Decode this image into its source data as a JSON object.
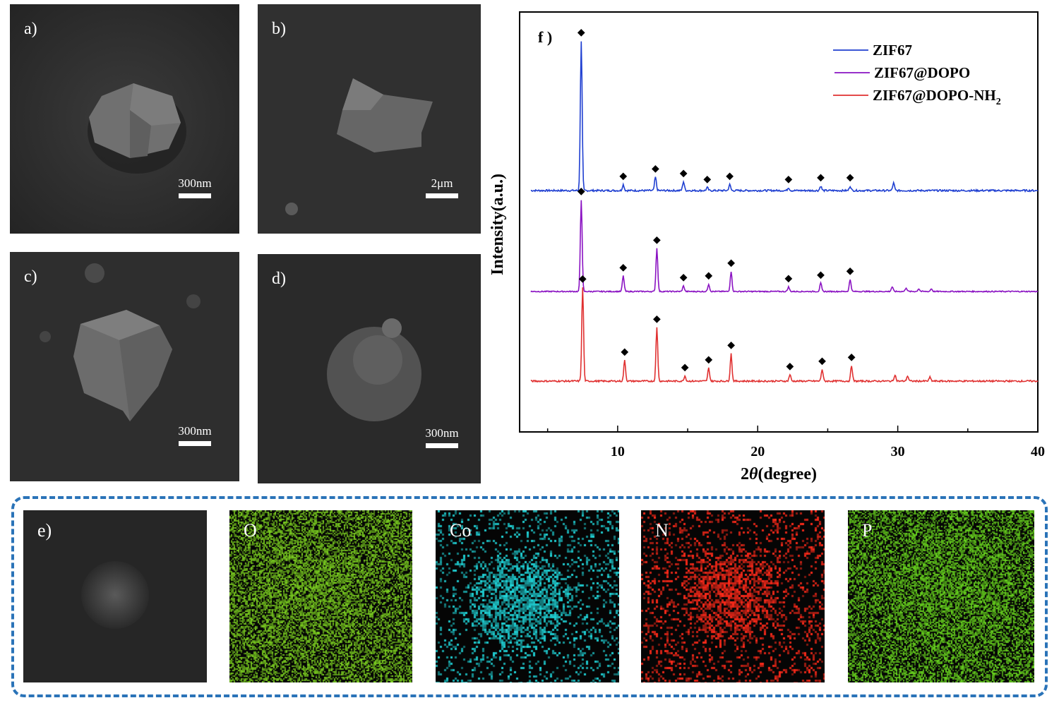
{
  "sem_panels": [
    {
      "label": "a)",
      "scale": "300nm"
    },
    {
      "label": "b)",
      "scale": "2μm"
    },
    {
      "label": "c)",
      "scale": "300nm"
    },
    {
      "label": "d)",
      "scale": "300nm"
    }
  ],
  "eds": {
    "label": "e)",
    "maps": [
      {
        "element": "O",
        "color": "#7ed321"
      },
      {
        "element": "Co",
        "color": "#20d4d8"
      },
      {
        "element": "N",
        "color": "#ff2a1a"
      },
      {
        "element": "P",
        "color": "#6ad81f"
      }
    ]
  },
  "chart_data": {
    "type": "line",
    "panel_label": "f )",
    "xlabel_prefix": "2",
    "xlabel_symbol": "θ",
    "xlabel_suffix": "(degree)",
    "ylabel": "Intensity(a.u.)",
    "xlim": [
      3,
      40
    ],
    "xticks": [
      10,
      20,
      30,
      40
    ],
    "marker": "◆",
    "legend_position": "top-right",
    "series": [
      {
        "name": "ZIF67",
        "subscript": "",
        "color": "#1f3fd1",
        "peaks": [
          {
            "x": 7.4,
            "h": 1.0,
            "marked": true
          },
          {
            "x": 10.4,
            "h": 0.04,
            "marked": true
          },
          {
            "x": 12.7,
            "h": 0.09,
            "marked": true
          },
          {
            "x": 14.7,
            "h": 0.06,
            "marked": true
          },
          {
            "x": 16.4,
            "h": 0.02,
            "marked": true
          },
          {
            "x": 18.0,
            "h": 0.04,
            "marked": true
          },
          {
            "x": 22.2,
            "h": 0.02,
            "marked": true
          },
          {
            "x": 24.5,
            "h": 0.03,
            "marked": true
          },
          {
            "x": 26.6,
            "h": 0.03,
            "marked": true
          },
          {
            "x": 29.7,
            "h": 0.05,
            "marked": false
          }
        ]
      },
      {
        "name": "ZIF67@DOPO",
        "subscript": "",
        "color": "#8a12c2",
        "peaks": [
          {
            "x": 7.4,
            "h": 1.0,
            "marked": true
          },
          {
            "x": 10.4,
            "h": 0.17,
            "marked": true
          },
          {
            "x": 12.8,
            "h": 0.47,
            "marked": true
          },
          {
            "x": 14.7,
            "h": 0.06,
            "marked": true
          },
          {
            "x": 16.5,
            "h": 0.08,
            "marked": true
          },
          {
            "x": 18.1,
            "h": 0.22,
            "marked": true
          },
          {
            "x": 22.2,
            "h": 0.05,
            "marked": true
          },
          {
            "x": 24.5,
            "h": 0.09,
            "marked": true
          },
          {
            "x": 26.6,
            "h": 0.13,
            "marked": true
          },
          {
            "x": 29.6,
            "h": 0.05,
            "marked": false
          },
          {
            "x": 30.6,
            "h": 0.04,
            "marked": false
          },
          {
            "x": 31.5,
            "h": 0.03,
            "marked": false
          },
          {
            "x": 32.4,
            "h": 0.03,
            "marked": false
          }
        ]
      },
      {
        "name": "ZIF67@DOPO-NH",
        "subscript": "2",
        "color": "#e03030",
        "peaks": [
          {
            "x": 7.5,
            "h": 0.72,
            "marked": true
          },
          {
            "x": 10.5,
            "h": 0.16,
            "marked": true
          },
          {
            "x": 12.8,
            "h": 0.41,
            "marked": true
          },
          {
            "x": 14.8,
            "h": 0.04,
            "marked": true
          },
          {
            "x": 16.5,
            "h": 0.1,
            "marked": true
          },
          {
            "x": 18.1,
            "h": 0.21,
            "marked": true
          },
          {
            "x": 22.3,
            "h": 0.05,
            "marked": true
          },
          {
            "x": 24.6,
            "h": 0.09,
            "marked": true
          },
          {
            "x": 26.7,
            "h": 0.12,
            "marked": true
          },
          {
            "x": 29.8,
            "h": 0.05,
            "marked": false
          },
          {
            "x": 30.7,
            "h": 0.04,
            "marked": false
          },
          {
            "x": 32.3,
            "h": 0.03,
            "marked": false
          }
        ]
      }
    ]
  }
}
